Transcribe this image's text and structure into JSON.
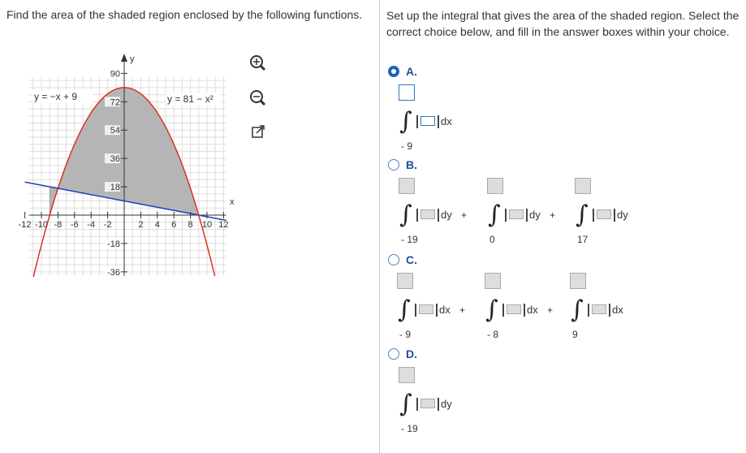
{
  "left": {
    "question": "Find the area of the shaded region enclosed by the following functions.",
    "graph": {
      "y_label": "y",
      "x_label": "x",
      "y_ticks": [
        "90",
        "72",
        "54",
        "36",
        "18",
        "-18",
        "-36"
      ],
      "x_ticks": [
        "-12",
        "-10",
        "-8",
        "-6",
        "-4",
        "-2",
        "2",
        "4",
        "6",
        "8",
        "10",
        "12"
      ],
      "line_label": "y = −x + 9",
      "curve_label": "y = 81 − x²"
    }
  },
  "right": {
    "instruction": "Set up the integral that gives the area of the shaded region. Select the correct choice below, and fill in the answer boxes within your choice.",
    "plus": "+",
    "options": [
      {
        "letter": "A.",
        "integrals": [
          {
            "lower": "- 9",
            "differential": "dx"
          }
        ]
      },
      {
        "letter": "B.",
        "integrals": [
          {
            "lower": "- 19",
            "differential": "dy"
          },
          {
            "lower": "0",
            "differential": "dy"
          },
          {
            "lower": "17",
            "differential": "dy"
          }
        ]
      },
      {
        "letter": "C.",
        "integrals": [
          {
            "lower": "- 9",
            "differential": "dx"
          },
          {
            "lower": "- 8",
            "differential": "dx"
          },
          {
            "lower": "9",
            "differential": "dx"
          }
        ]
      },
      {
        "letter": "D.",
        "integrals": [
          {
            "lower": "- 19",
            "differential": "dy"
          }
        ]
      }
    ]
  }
}
